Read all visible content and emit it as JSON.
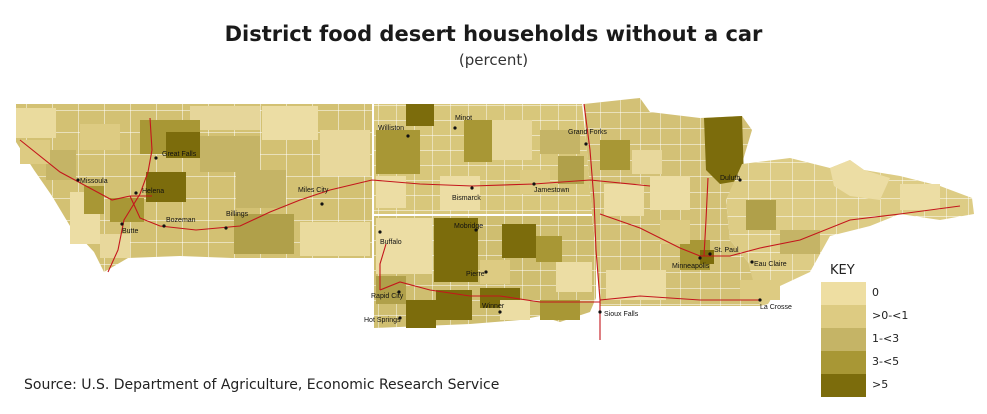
{
  "title": "District food desert households without a car",
  "subtitle": "(percent)",
  "source": "Source: U.S. Department of Agriculture, Economic Research Service",
  "key": {
    "title": "KEY",
    "classes": [
      {
        "label": "0",
        "color": "#eedea2"
      },
      {
        "label": ">0-<1",
        "color": "#ddcb82"
      },
      {
        "label": "1-<3",
        "color": "#c5b466"
      },
      {
        "label": "3-<5",
        "color": "#a89735"
      },
      {
        "label": ">5",
        "color": "#7c6c0c"
      }
    ]
  },
  "cities": [
    {
      "id": "great-falls",
      "name": "Great Falls"
    },
    {
      "id": "missoula",
      "name": "Missoula"
    },
    {
      "id": "helena",
      "name": "Helena"
    },
    {
      "id": "butte",
      "name": "Butte"
    },
    {
      "id": "bozeman",
      "name": "Bozeman"
    },
    {
      "id": "billings",
      "name": "Billings"
    },
    {
      "id": "miles-city",
      "name": "Miles City"
    },
    {
      "id": "williston",
      "name": "Williston"
    },
    {
      "id": "minot",
      "name": "Minot"
    },
    {
      "id": "grand-forks",
      "name": "Grand Forks"
    },
    {
      "id": "bismarck",
      "name": "Bismarck"
    },
    {
      "id": "jamestown",
      "name": "Jamestown"
    },
    {
      "id": "duluth",
      "name": "Duluth"
    },
    {
      "id": "buffalo",
      "name": "Buffalo"
    },
    {
      "id": "mobridge",
      "name": "Mobridge"
    },
    {
      "id": "pierre",
      "name": "Pierre"
    },
    {
      "id": "rapid-city",
      "name": "Rapid City"
    },
    {
      "id": "hot-springs",
      "name": "Hot Springs"
    },
    {
      "id": "winner",
      "name": "Winner"
    },
    {
      "id": "sioux-falls",
      "name": "Sioux Falls"
    },
    {
      "id": "minneapolis",
      "name": "Minneapolis"
    },
    {
      "id": "st-paul",
      "name": "St. Paul"
    },
    {
      "id": "eau-claire",
      "name": "Eau Claire"
    },
    {
      "id": "la-crosse",
      "name": "La Crosse"
    }
  ]
}
